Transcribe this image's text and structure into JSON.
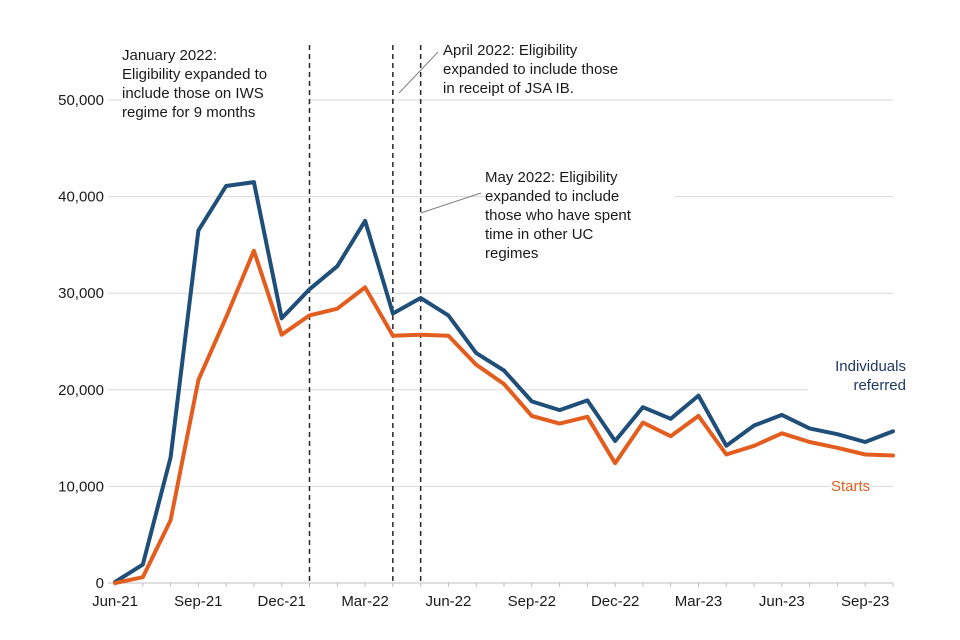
{
  "chart_data": {
    "type": "line",
    "x": [
      "Jun-21",
      "Jul-21",
      "Aug-21",
      "Sep-21",
      "Oct-21",
      "Nov-21",
      "Dec-21",
      "Jan-22",
      "Feb-22",
      "Mar-22",
      "Apr-22",
      "May-22",
      "Jun-22",
      "Jul-22",
      "Aug-22",
      "Sep-22",
      "Oct-22",
      "Nov-22",
      "Dec-22",
      "Jan-23",
      "Feb-23",
      "Mar-23",
      "Apr-23",
      "May-23",
      "Jun-23",
      "Jul-23",
      "Aug-23",
      "Sep-23",
      "Oct-23"
    ],
    "series": [
      {
        "name": "Individuals referred",
        "color": "#1F4E79",
        "values": [
          100,
          1900,
          13000,
          36500,
          41100,
          41500,
          27400,
          30400,
          32800,
          37500,
          27900,
          29500,
          27700,
          23800,
          22000,
          18800,
          17900,
          18900,
          14700,
          18200,
          17000,
          19400,
          14200,
          16300,
          17400,
          16000,
          15400,
          14600,
          15700
        ]
      },
      {
        "name": "Starts",
        "color": "#E25D1E",
        "values": [
          0,
          600,
          6500,
          21000,
          27500,
          34400,
          25700,
          27700,
          28400,
          30600,
          25600,
          25700,
          25600,
          22600,
          20600,
          17300,
          16500,
          17200,
          12400,
          16600,
          15200,
          17300,
          13300,
          14200,
          15500,
          14600,
          14000,
          13300,
          13200
        ]
      }
    ],
    "ylim": [
      0,
      50000
    ],
    "y_ticks": [
      {
        "value": 0,
        "label": "0"
      },
      {
        "value": 10000,
        "label": "10,000"
      },
      {
        "value": 20000,
        "label": "20,000"
      },
      {
        "value": 30000,
        "label": "30,000"
      },
      {
        "value": 40000,
        "label": "40,000"
      },
      {
        "value": 50000,
        "label": "50,000"
      }
    ],
    "x_tick_label_indices": [
      0,
      3,
      6,
      9,
      12,
      15,
      18,
      21,
      24,
      27
    ],
    "grid": "horizontal",
    "legend_position": "inline-right",
    "annotations": [
      {
        "month": "Jan-22",
        "month_index": 7,
        "text": "January 2022:\nEligibility expanded to\ninclude those on IWS\nregime for 9 months"
      },
      {
        "month": "Apr-22",
        "month_index": 10,
        "text": "April 2022: Eligibility\nexpanded to include those\nin receipt of JSA IB."
      },
      {
        "month": "May-22",
        "month_index": 11,
        "text": "May 2022: Eligibility\nexpanded to include\nthose who have spent\ntime in other UC\nregimes"
      }
    ],
    "colors": {
      "gridline": "#D9D9D9",
      "axis": "#BFBFBF",
      "event_line": "#262626",
      "leader_line": "#808080",
      "tick_text": "#1a1a1a"
    }
  }
}
